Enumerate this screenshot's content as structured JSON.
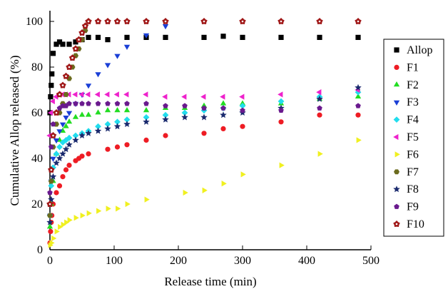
{
  "chart_data": {
    "type": "scatter",
    "xlabel": "Release time (min)",
    "ylabel": "Cumulative Allop released (%)",
    "xlim": [
      0,
      500
    ],
    "ylim": [
      0,
      105
    ],
    "xticks": [
      "0",
      "100",
      "200",
      "300",
      "400",
      "500"
    ],
    "yticks": [
      "0",
      "20",
      "40",
      "60",
      "80",
      "100"
    ],
    "legend_position": "right",
    "series": [
      {
        "name": "Allop",
        "marker": "square",
        "color": "#000000",
        "x": [
          0,
          1,
          2,
          3,
          5,
          10,
          15,
          20,
          30,
          40,
          50,
          60,
          75,
          90,
          120,
          150,
          180,
          240,
          270,
          300,
          360,
          420,
          480
        ],
        "y": [
          60,
          67,
          72,
          77,
          86,
          90,
          91,
          90,
          90,
          91,
          92,
          93,
          93,
          92,
          93,
          93,
          93,
          93,
          93.5,
          93,
          93,
          93,
          93
        ]
      },
      {
        "name": "F1",
        "marker": "circle",
        "color": "#ee1c24",
        "x": [
          0,
          1,
          2,
          3,
          5,
          10,
          15,
          20,
          25,
          30,
          40,
          45,
          50,
          60,
          90,
          105,
          120,
          150,
          180,
          240,
          270,
          300,
          360,
          420,
          480
        ],
        "y": [
          3,
          8,
          12,
          15,
          20,
          25,
          28,
          32,
          35,
          37,
          39,
          40,
          41,
          42,
          44,
          45,
          46,
          48,
          50,
          51,
          53,
          54,
          56,
          59,
          59
        ]
      },
      {
        "name": "F2",
        "marker": "triangle-up",
        "color": "#22dd22",
        "x": [
          0,
          2,
          5,
          10,
          15,
          20,
          25,
          30,
          40,
          50,
          60,
          75,
          90,
          105,
          120,
          150,
          180,
          210,
          240,
          270,
          300,
          360,
          420,
          480
        ],
        "y": [
          10,
          20,
          30,
          42,
          48,
          52,
          54,
          56,
          58,
          59,
          59,
          60,
          61,
          61,
          61,
          61,
          62,
          62,
          63,
          64,
          64,
          64,
          66,
          67
        ]
      },
      {
        "name": "F3",
        "marker": "triangle-down",
        "color": "#1a3fd6",
        "x": [
          0,
          2,
          5,
          10,
          15,
          20,
          25,
          30,
          40,
          50,
          60,
          75,
          90,
          105,
          120,
          150,
          180
        ],
        "y": [
          15,
          30,
          40,
          48,
          52,
          55,
          58,
          60,
          64,
          68,
          72,
          77,
          81,
          85,
          89,
          94,
          98
        ]
      },
      {
        "name": "F4",
        "marker": "diamond",
        "color": "#22ddee",
        "x": [
          0,
          2,
          5,
          10,
          15,
          20,
          25,
          30,
          40,
          50,
          60,
          75,
          90,
          105,
          120,
          150,
          180,
          210,
          240,
          270,
          300,
          360,
          420,
          480
        ],
        "y": [
          15,
          28,
          36,
          42,
          45,
          47,
          48,
          49,
          50,
          51,
          52,
          54,
          55,
          56,
          57,
          58,
          59,
          60,
          61,
          62,
          63,
          65,
          67,
          69
        ]
      },
      {
        "name": "F5",
        "marker": "triangle-left",
        "color": "#ee22cc",
        "x": [
          0,
          2,
          5,
          10,
          15,
          20,
          25,
          30,
          40,
          50,
          60,
          75,
          90,
          105,
          120,
          150,
          180,
          210,
          240,
          270,
          300,
          360,
          420,
          480
        ],
        "y": [
          50,
          60,
          65,
          67,
          68,
          68,
          68,
          68,
          68,
          68,
          68,
          68,
          68,
          68,
          68,
          68,
          67,
          67,
          67,
          67,
          67,
          68,
          69,
          70
        ]
      },
      {
        "name": "F6",
        "marker": "triangle-right",
        "color": "#f0f020",
        "x": [
          0,
          2,
          5,
          10,
          15,
          20,
          25,
          30,
          40,
          50,
          60,
          75,
          90,
          105,
          120,
          150,
          210,
          240,
          270,
          300,
          360,
          420,
          480
        ],
        "y": [
          2,
          3,
          5,
          8,
          10,
          11,
          12,
          13,
          14,
          15,
          16,
          17,
          18,
          18,
          20,
          22,
          25,
          26,
          29,
          33,
          37,
          42,
          48
        ]
      },
      {
        "name": "F7",
        "marker": "hexagon",
        "color": "#6b6b1e",
        "x": [
          0,
          2,
          5,
          10,
          15,
          20,
          25,
          30,
          35,
          40,
          45,
          50,
          55,
          60
        ],
        "y": [
          15,
          30,
          45,
          55,
          60,
          64,
          68,
          75,
          80,
          85,
          88,
          92,
          96,
          100
        ]
      },
      {
        "name": "F8",
        "marker": "star",
        "color": "#1a2a6e",
        "x": [
          0,
          2,
          5,
          10,
          15,
          20,
          25,
          30,
          40,
          50,
          60,
          75,
          90,
          105,
          120,
          150,
          180,
          210,
          240,
          270,
          300,
          360,
          420,
          480
        ],
        "y": [
          12,
          22,
          32,
          38,
          40,
          42,
          44,
          46,
          48,
          50,
          51,
          52,
          53,
          54,
          55,
          56,
          57,
          58,
          58,
          59,
          60,
          62,
          66,
          71
        ]
      },
      {
        "name": "F9",
        "marker": "pentagon",
        "color": "#6a1a8e",
        "x": [
          0,
          2,
          5,
          10,
          15,
          20,
          25,
          30,
          40,
          50,
          60,
          75,
          90,
          105,
          120,
          150,
          180,
          210,
          240,
          270,
          300,
          360,
          420,
          480
        ],
        "y": [
          25,
          45,
          55,
          60,
          62,
          63,
          63,
          64,
          64,
          64,
          64,
          64,
          64,
          64,
          64,
          64,
          63,
          63,
          62,
          62,
          61,
          61,
          62,
          63
        ]
      },
      {
        "name": "F10",
        "marker": "gear",
        "color": "#a01818",
        "x": [
          0,
          2,
          5,
          10,
          15,
          20,
          25,
          30,
          35,
          40,
          45,
          50,
          55,
          60,
          75,
          90,
          105,
          120,
          150,
          180,
          240,
          300,
          360,
          420,
          480
        ],
        "y": [
          20,
          35,
          50,
          60,
          68,
          72,
          76,
          80,
          84,
          88,
          92,
          95,
          98,
          100,
          100,
          100,
          100,
          100,
          100,
          100,
          100,
          100,
          100,
          100,
          100
        ]
      }
    ]
  }
}
